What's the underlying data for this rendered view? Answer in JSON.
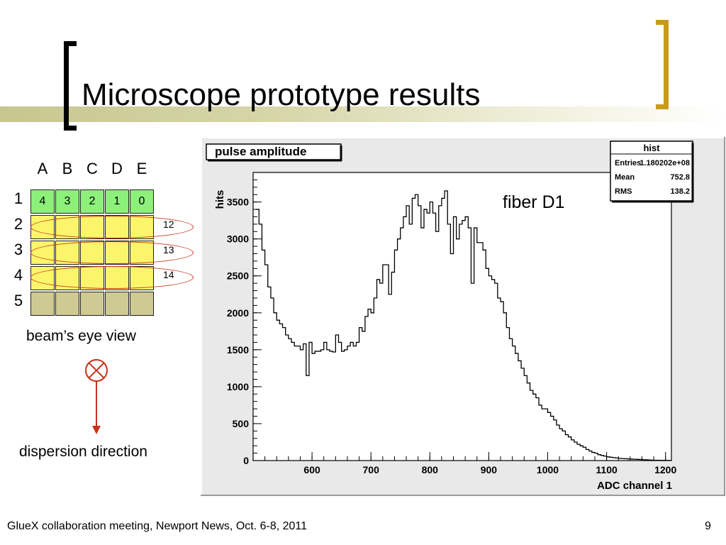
{
  "slide": {
    "title": "Microscope prototype results",
    "footer": "GlueX collaboration meeting, Newport News, Oct. 6-8, 2011",
    "page_number": "9"
  },
  "grid": {
    "columns": [
      "A",
      "B",
      "C",
      "D",
      "E"
    ],
    "rows": [
      "1",
      "2",
      "3",
      "4",
      "5"
    ],
    "row1_values": [
      "4",
      "3",
      "2",
      "1",
      "0"
    ],
    "row_colors": [
      "#8cf07a",
      "#fbf56b",
      "#fbf56b",
      "#fbf56b",
      "#cfca94"
    ],
    "ellipse_labels": [
      "12",
      "13",
      "14"
    ],
    "caption": "beam’s eye view"
  },
  "dispersion": {
    "label": "dispersion direction",
    "icon": "into-page-cross-circle-icon"
  },
  "chart_data": {
    "type": "histogram",
    "title": "pulse amplitude",
    "xlabel": "ADC channel 1",
    "ylabel": "hits",
    "annotation": "fiber D1",
    "xlim": [
      500,
      1210
    ],
    "ylim": [
      0,
      3900
    ],
    "xticks": [
      600,
      700,
      800,
      900,
      1000,
      1100,
      1200
    ],
    "yticks": [
      0,
      500,
      1000,
      1500,
      2000,
      2500,
      3000,
      3500
    ],
    "bin_width": 5,
    "x_start": 505,
    "values": [
      3400,
      3200,
      2850,
      2650,
      2350,
      2200,
      2000,
      1900,
      1850,
      1800,
      1700,
      1650,
      1600,
      1550,
      1550,
      1500,
      1580,
      1150,
      1600,
      1450,
      1480,
      1480,
      1500,
      1600,
      1500,
      1480,
      1470,
      1700,
      1600,
      1480,
      1500,
      1550,
      1600,
      1550,
      1600,
      1800,
      1750,
      1950,
      2050,
      2000,
      2200,
      2450,
      2400,
      2650,
      2650,
      2250,
      2550,
      2850,
      3000,
      3150,
      3300,
      3450,
      3200,
      3550,
      3600,
      3450,
      3150,
      3400,
      3350,
      3500,
      3350,
      3100,
      3450,
      3550,
      3650,
      3200,
      2800,
      3300,
      3000,
      3200,
      3250,
      3300,
      3150,
      2400,
      3150,
      2950,
      2950,
      2850,
      2600,
      2500,
      2450,
      2400,
      2200,
      2150,
      2000,
      1800,
      1650,
      1550,
      1450,
      1350,
      1250,
      1150,
      1050,
      950,
      900,
      850,
      750,
      700,
      700,
      650,
      600,
      550,
      480,
      430,
      400,
      350,
      320,
      280,
      250,
      220,
      200,
      180,
      150,
      130,
      110,
      100,
      80,
      70,
      60,
      50,
      45,
      40,
      35,
      30,
      28,
      25,
      22,
      20,
      18,
      16,
      15,
      12,
      10,
      8,
      6,
      5,
      4,
      3,
      3,
      2,
      2
    ],
    "stats_box": {
      "title": "hist",
      "rows": [
        {
          "label": "Entries",
          "value": "1.180202e+08"
        },
        {
          "label": "Mean",
          "value": "752.8"
        },
        {
          "label": "RMS",
          "value": "138.2"
        }
      ]
    }
  }
}
